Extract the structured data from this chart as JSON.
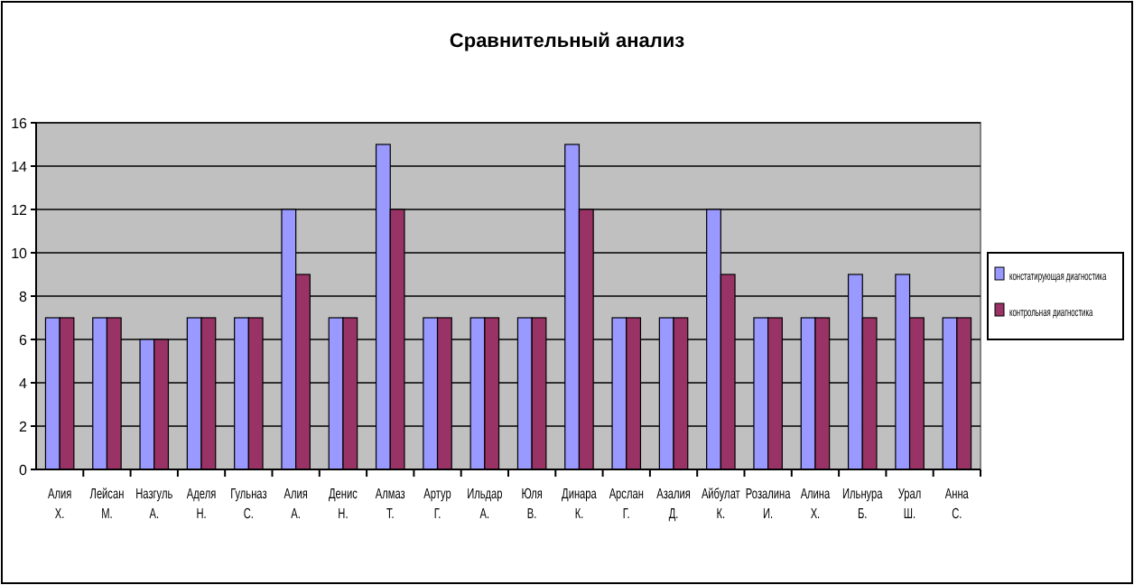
{
  "chart_data": {
    "type": "bar",
    "title": "Сравнительный анализ",
    "categories": [
      "Алия Х.",
      "Лейсан М.",
      "Назгуль А.",
      "Аделя Н.",
      "Гульназ С.",
      "Алия А.",
      "Денис Н.",
      "Алмаз Т.",
      "Артур Г.",
      "Ильдар А.",
      "Юля В.",
      "Динара К.",
      "Арслан Г.",
      "Азалия Д.",
      "Айбулат К.",
      "Розалина И.",
      "Алина Х.",
      "Ильнура Б.",
      "Урал Ш.",
      "Анна С."
    ],
    "series": [
      {
        "name": "констатирующая диагностика",
        "color": "#9999ff",
        "values": [
          7,
          7,
          6,
          7,
          7,
          12,
          7,
          15,
          7,
          7,
          7,
          15,
          7,
          7,
          12,
          7,
          7,
          9,
          9,
          7
        ]
      },
      {
        "name": "контрольная диагностика",
        "color": "#993366",
        "values": [
          7,
          7,
          6,
          7,
          7,
          9,
          7,
          12,
          7,
          7,
          7,
          12,
          7,
          7,
          9,
          7,
          7,
          7,
          7,
          7
        ]
      }
    ],
    "ylim": [
      0,
      16
    ],
    "yticks": [
      0,
      2,
      4,
      6,
      8,
      10,
      12,
      14,
      16
    ],
    "grid": "y",
    "legend": "right"
  }
}
